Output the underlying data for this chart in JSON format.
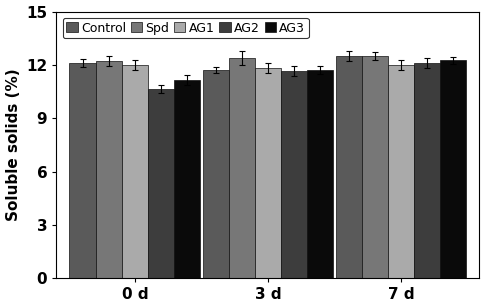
{
  "groups": [
    "0 d",
    "3 d",
    "7 d"
  ],
  "series": [
    "Control",
    "Spd",
    "AG1",
    "AG2",
    "AG3"
  ],
  "values": [
    [
      12.1,
      12.2,
      12.0,
      10.65,
      11.15
    ],
    [
      11.7,
      12.4,
      11.85,
      11.65,
      11.72
    ],
    [
      12.5,
      12.52,
      12.0,
      12.1,
      12.25
    ]
  ],
  "errors": [
    [
      0.22,
      0.28,
      0.28,
      0.22,
      0.28
    ],
    [
      0.18,
      0.38,
      0.28,
      0.28,
      0.22
    ],
    [
      0.28,
      0.22,
      0.28,
      0.28,
      0.22
    ]
  ],
  "colors": [
    "#5a5a5a",
    "#777777",
    "#aaaaaa",
    "#3d3d3d",
    "#0a0a0a"
  ],
  "ylabel": "Soluble solids (%)",
  "ylim": [
    0,
    15
  ],
  "yticks": [
    0,
    3,
    6,
    9,
    12,
    15
  ],
  "bar_width": 0.055,
  "group_positions": [
    0.22,
    0.5,
    0.78
  ],
  "legend_labels": [
    "Control",
    "Spd",
    "AG1",
    "AG2",
    "AG3"
  ],
  "axis_fontsize": 11,
  "tick_fontsize": 11,
  "legend_fontsize": 9,
  "edge_color": "#111111"
}
